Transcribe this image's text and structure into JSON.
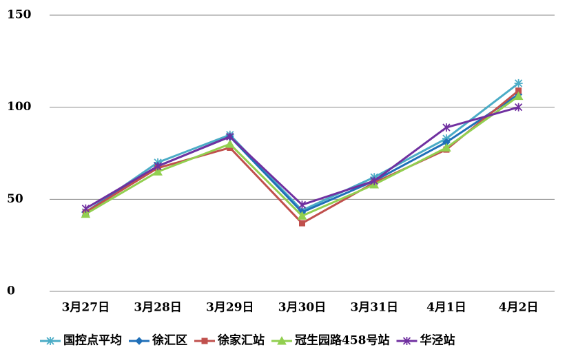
{
  "chart_data": {
    "type": "line",
    "categories": [
      "3月27日",
      "3月28日",
      "3月29日",
      "3月30日",
      "3月31日",
      "4月1日",
      "4月2日"
    ],
    "series": [
      {
        "name": "国控点平均",
        "color": "#4bacc6",
        "marker": "asterisk",
        "values": [
          43,
          70,
          85,
          44,
          62,
          83,
          113
        ]
      },
      {
        "name": "徐汇区",
        "color": "#1f6fb8",
        "marker": "diamond",
        "values": [
          43,
          68,
          84,
          43,
          60,
          81,
          107
        ]
      },
      {
        "name": "徐家汇站",
        "color": "#c0504d",
        "marker": "square",
        "values": [
          43,
          67,
          78,
          37,
          59,
          77,
          109
        ]
      },
      {
        "name": "冠生园路458号站",
        "color": "#92cf50",
        "marker": "triangle",
        "values": [
          42,
          65,
          80,
          41,
          58,
          78,
          106
        ]
      },
      {
        "name": "华泾站",
        "color": "#7030a0",
        "marker": "star",
        "values": [
          45,
          68,
          84,
          47,
          60,
          89,
          100
        ]
      }
    ],
    "ylim": [
      0,
      150
    ],
    "yticks": [
      0,
      50,
      100,
      150
    ],
    "grid": true,
    "legend": "bottom"
  }
}
